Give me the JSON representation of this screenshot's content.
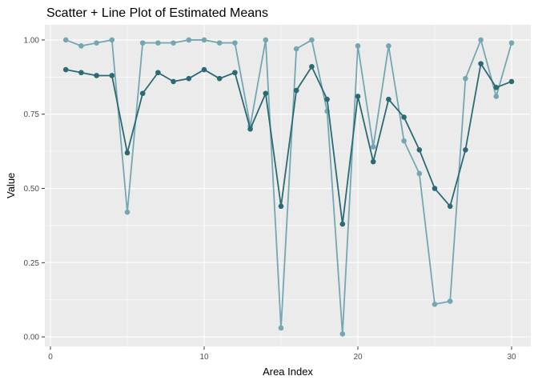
{
  "chart_data": {
    "type": "line",
    "title": "Scatter + Line Plot of Estimated Means",
    "xlabel": "Area Index",
    "ylabel": "Value",
    "x": [
      1,
      2,
      3,
      4,
      5,
      6,
      7,
      8,
      9,
      10,
      11,
      12,
      13,
      14,
      15,
      16,
      17,
      18,
      19,
      20,
      21,
      22,
      23,
      24,
      25,
      26,
      27,
      28,
      29,
      30
    ],
    "series": [
      {
        "name": "light-teal-series",
        "color": "#74A7B1",
        "values": [
          1.0,
          0.98,
          0.99,
          1.0,
          0.42,
          0.99,
          0.99,
          0.99,
          1.0,
          1.0,
          0.99,
          0.99,
          0.71,
          1.0,
          0.03,
          0.97,
          1.0,
          0.76,
          0.01,
          0.98,
          0.64,
          0.98,
          0.66,
          0.55,
          0.11,
          0.12,
          0.87,
          1.0,
          0.81,
          0.99
        ]
      },
      {
        "name": "dark-teal-series",
        "color": "#2B6A75",
        "values": [
          0.9,
          0.89,
          0.88,
          0.88,
          0.62,
          0.82,
          0.89,
          0.86,
          0.87,
          0.9,
          0.87,
          0.89,
          0.7,
          0.82,
          0.44,
          0.83,
          0.91,
          0.8,
          0.38,
          0.81,
          0.59,
          0.8,
          0.74,
          0.63,
          0.5,
          0.44,
          0.63,
          0.92,
          0.84,
          0.86
        ]
      }
    ],
    "x_ticks": {
      "major": [
        0,
        10,
        20,
        30
      ],
      "minor": [
        5,
        15,
        25
      ],
      "labels": [
        "0",
        "10",
        "20",
        "30"
      ]
    },
    "y_ticks": {
      "major": [
        0.0,
        0.25,
        0.5,
        0.75,
        1.0
      ],
      "minor": [
        0.125,
        0.375,
        0.625,
        0.875
      ],
      "labels": [
        "0.00",
        "0.25",
        "0.50",
        "0.75",
        "1.00"
      ]
    },
    "xlim": [
      -0.365,
      31.25
    ],
    "ylim": [
      -0.032,
      1.051
    ],
    "legend_position": "none",
    "grid": "on",
    "colors": {
      "panel_background": "#EBEBEB",
      "outer_background": "#FFFFFF",
      "gridline": "#FFFFFF",
      "tick_mark": "#333333",
      "tick_label": "#4D4D4D",
      "title_text": "#000000"
    }
  }
}
